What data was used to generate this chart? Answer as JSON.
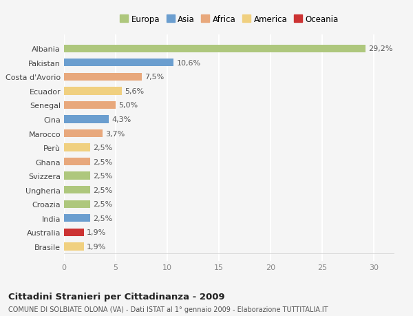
{
  "countries": [
    "Albania",
    "Pakistan",
    "Costa d'Avorio",
    "Ecuador",
    "Senegal",
    "Cina",
    "Marocco",
    "Perù",
    "Ghana",
    "Svizzera",
    "Ungheria",
    "Croazia",
    "India",
    "Australia",
    "Brasile"
  ],
  "values": [
    29.2,
    10.6,
    7.5,
    5.6,
    5.0,
    4.3,
    3.7,
    2.5,
    2.5,
    2.5,
    2.5,
    2.5,
    2.5,
    1.9,
    1.9
  ],
  "labels": [
    "29,2%",
    "10,6%",
    "7,5%",
    "5,6%",
    "5,0%",
    "4,3%",
    "3,7%",
    "2,5%",
    "2,5%",
    "2,5%",
    "2,5%",
    "2,5%",
    "2,5%",
    "1,9%",
    "1,9%"
  ],
  "colors": [
    "#aec77d",
    "#6b9ecf",
    "#e8a87c",
    "#f0d080",
    "#e8a87c",
    "#6b9ecf",
    "#e8a87c",
    "#f0d080",
    "#e8a87c",
    "#aec77d",
    "#aec77d",
    "#aec77d",
    "#6b9ecf",
    "#cc3333",
    "#f0d080"
  ],
  "continent_labels": [
    "Europa",
    "Asia",
    "Africa",
    "America",
    "Oceania"
  ],
  "continent_colors": [
    "#aec77d",
    "#6b9ecf",
    "#e8a87c",
    "#f0d080",
    "#cc3333"
  ],
  "xlim": [
    0,
    32
  ],
  "xticks": [
    0,
    5,
    10,
    15,
    20,
    25,
    30
  ],
  "title": "Cittadini Stranieri per Cittadinanza - 2009",
  "subtitle": "COMUNE DI SOLBIATE OLONA (VA) - Dati ISTAT al 1° gennaio 2009 - Elaborazione TUTTITALIA.IT",
  "bg_color": "#f5f5f5",
  "grid_color": "#ffffff",
  "bar_height": 0.55,
  "label_fontsize": 8,
  "tick_fontsize": 8
}
